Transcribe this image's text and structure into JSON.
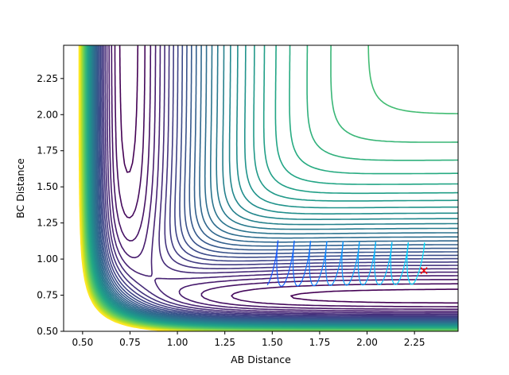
{
  "chart_data": {
    "type": "contour",
    "title": "",
    "xlabel": "AB Distance",
    "ylabel": "BC Distance",
    "xlim": [
      0.4,
      2.48
    ],
    "ylim": [
      0.5,
      2.48
    ],
    "xticks": [
      "0.50",
      "0.75",
      "1.00",
      "1.25",
      "1.50",
      "1.75",
      "2.00",
      "2.25"
    ],
    "yticks": [
      "0.50",
      "0.75",
      "1.00",
      "1.25",
      "1.50",
      "1.75",
      "2.00",
      "2.25"
    ],
    "xtick_values": [
      0.5,
      0.75,
      1.0,
      1.25,
      1.5,
      1.75,
      2.0,
      2.25
    ],
    "ytick_values": [
      0.5,
      0.75,
      1.0,
      1.25,
      1.5,
      1.75,
      2.0,
      2.25
    ],
    "colormap": "viridis",
    "contour_levels": 40,
    "grid": false,
    "legend": "none",
    "surface": {
      "kind": "LEPS-like potential energy surface",
      "well_depth": 1.0,
      "alpha": 3.0,
      "r_eq": 0.74,
      "coupling": 0.45
    },
    "trajectory": {
      "color": "#00aaff",
      "start": [
        2.3,
        0.92
      ],
      "description": "oscillating path from start towards lower AB distance"
    },
    "start_marker": {
      "x": 2.3,
      "y": 0.92,
      "symbol": "x",
      "color": "#ff0000"
    }
  }
}
